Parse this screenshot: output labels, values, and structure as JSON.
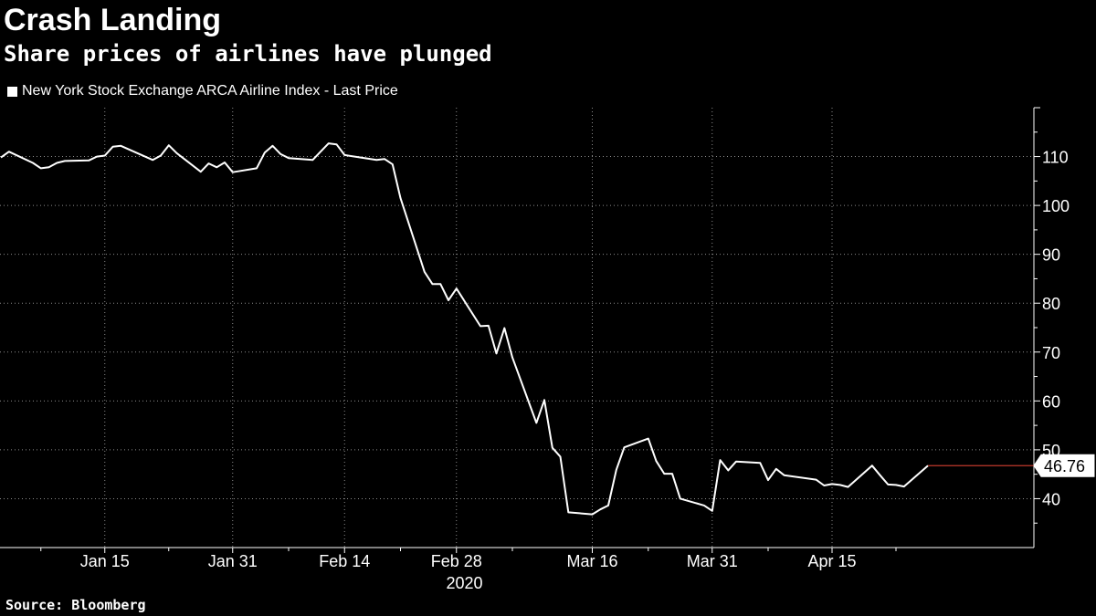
{
  "header": {
    "title": "Crash Landing",
    "subtitle": "Share prices of airlines have plunged"
  },
  "legend": {
    "label": "New York Stock Exchange ARCA Airline Index - Last Price"
  },
  "footer": {
    "source": "Source: Bloomberg"
  },
  "colors": {
    "background": "#000000",
    "line": "#ffffff",
    "grid": "#ffffff",
    "last_marker": "#c0392b"
  },
  "chart_data": {
    "type": "line",
    "title": "Crash Landing",
    "subtitle": "Share prices of airlines have plunged",
    "xlabel": "",
    "ylabel": "",
    "ylim": [
      30,
      120
    ],
    "yticks": [
      40,
      50,
      60,
      70,
      80,
      90,
      100,
      110
    ],
    "xtick_labels": [
      "Jan 15",
      "Jan 31",
      "Feb 14",
      "Feb 28",
      "Mar 16",
      "Mar 31",
      "Apr 15"
    ],
    "year_label": "2020",
    "grid": true,
    "legend_position": "top-left",
    "last_value_label": "46.76",
    "series": [
      {
        "name": "New York Stock Exchange ARCA Airline Index - Last Price",
        "x": [
          "2020-01-02",
          "2020-01-03",
          "2020-01-06",
          "2020-01-07",
          "2020-01-08",
          "2020-01-09",
          "2020-01-10",
          "2020-01-13",
          "2020-01-14",
          "2020-01-15",
          "2020-01-16",
          "2020-01-17",
          "2020-01-21",
          "2020-01-22",
          "2020-01-23",
          "2020-01-24",
          "2020-01-27",
          "2020-01-28",
          "2020-01-29",
          "2020-01-30",
          "2020-01-31",
          "2020-02-03",
          "2020-02-04",
          "2020-02-05",
          "2020-02-06",
          "2020-02-07",
          "2020-02-10",
          "2020-02-11",
          "2020-02-12",
          "2020-02-13",
          "2020-02-14",
          "2020-02-18",
          "2020-02-19",
          "2020-02-20",
          "2020-02-21",
          "2020-02-24",
          "2020-02-25",
          "2020-02-26",
          "2020-02-27",
          "2020-02-28",
          "2020-03-02",
          "2020-03-03",
          "2020-03-04",
          "2020-03-05",
          "2020-03-06",
          "2020-03-09",
          "2020-03-10",
          "2020-03-11",
          "2020-03-12",
          "2020-03-13",
          "2020-03-16",
          "2020-03-17",
          "2020-03-18",
          "2020-03-19",
          "2020-03-20",
          "2020-03-23",
          "2020-03-24",
          "2020-03-25",
          "2020-03-26",
          "2020-03-27",
          "2020-03-30",
          "2020-03-31",
          "2020-04-01",
          "2020-04-02",
          "2020-04-03",
          "2020-04-06",
          "2020-04-07",
          "2020-04-08",
          "2020-04-09",
          "2020-04-13",
          "2020-04-14",
          "2020-04-15",
          "2020-04-16",
          "2020-04-17",
          "2020-04-20",
          "2020-04-21",
          "2020-04-22",
          "2020-04-23",
          "2020-04-24",
          "2020-04-27"
        ],
        "values": [
          109.8,
          111.0,
          108.7,
          107.6,
          107.8,
          108.7,
          109.1,
          109.2,
          110.0,
          110.2,
          112.0,
          112.2,
          109.3,
          110.2,
          112.3,
          110.7,
          106.9,
          108.6,
          107.8,
          108.8,
          106.8,
          107.6,
          110.8,
          112.2,
          110.5,
          109.7,
          109.3,
          111.0,
          112.7,
          112.5,
          110.3,
          109.3,
          109.5,
          108.4,
          101.5,
          86.4,
          83.9,
          83.9,
          80.6,
          83.0,
          75.3,
          75.4,
          69.7,
          74.9,
          68.9,
          55.5,
          60.2,
          50.4,
          48.6,
          37.2,
          36.8,
          37.8,
          38.6,
          45.9,
          50.5,
          52.3,
          47.7,
          45.1,
          45.1,
          40.0,
          38.6,
          37.5,
          47.9,
          45.8,
          47.6,
          47.3,
          43.8,
          46.1,
          44.8,
          43.9,
          42.7,
          43.0,
          42.8,
          42.4,
          46.76,
          44.8,
          42.9,
          42.8,
          42.5,
          46.76
        ]
      }
    ]
  }
}
